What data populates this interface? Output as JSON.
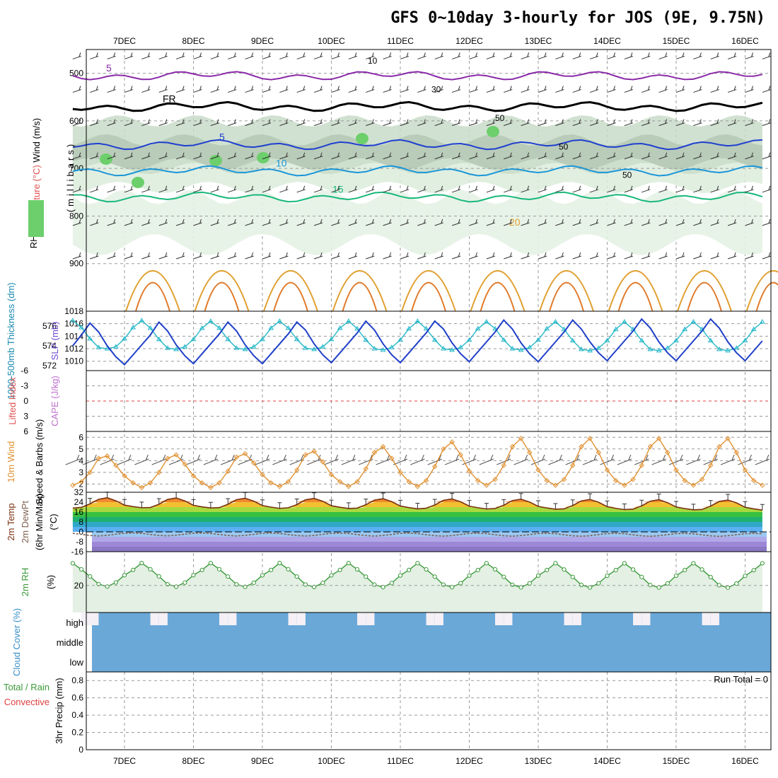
{
  "chart_data": [
    {
      "type": "meteogram",
      "title": "GFS 0~10day 3-hourly for JOS (9E, 9.75N)",
      "dates": [
        "7DEC",
        "8DEC",
        "9DEC",
        "10DEC",
        "11DEC",
        "12DEC",
        "13DEC",
        "14DEC",
        "15DEC",
        "16DEC"
      ]
    },
    {
      "type": "contour",
      "name": "upper-air",
      "ylabel_parts": [
        "Wind (m/s)",
        "Temperature (°C)",
        "RH (%)",
        "(millibars)"
      ],
      "yticks": [
        "500",
        "600",
        "700",
        "800",
        "900"
      ],
      "pressure_range": [
        1000,
        450
      ],
      "temp_contours": [
        {
          "label": "5",
          "color": "#8a2aa8"
        },
        {
          "label": "FR",
          "color": "#000000"
        },
        {
          "label": "5",
          "color": "#1f3fd0"
        },
        {
          "label": "10",
          "color": "#1a96d8"
        },
        {
          "label": "15",
          "color": "#18b87a"
        },
        {
          "label": "20",
          "color": "#e0a030"
        }
      ],
      "rh_labels": [
        "10",
        "30",
        "50",
        "50",
        "50"
      ]
    },
    {
      "type": "line",
      "name": "thickness-slp",
      "ylabel_left": "1000-500mb Thickness (dm)",
      "ylabel_right": "SLP (mb)",
      "yticks_left": [
        "576",
        "574",
        "572"
      ],
      "yticks_right": [
        "1018",
        "1016",
        "1014",
        "1012",
        "1010"
      ],
      "ylim_left": [
        571.5,
        577.5
      ],
      "ylim_right": [
        1008.5,
        1018
      ],
      "series": [
        {
          "name": "SLP",
          "color": "#25b8c8",
          "values": [
            1016.5,
            1015.4,
            1013.6,
            1012.2,
            1012.0,
            1012.3,
            1013.6,
            1015.4,
            1016.5,
            1015.3,
            1013.5,
            1012.1,
            1011.9,
            1012.3,
            1013.5,
            1015.3,
            1016.4,
            1015.3,
            1013.5,
            1012.1,
            1011.9,
            1012.3,
            1013.5,
            1015.3,
            1016.4,
            1015.3,
            1013.5,
            1012.1,
            1011.9,
            1012.3,
            1013.5,
            1015.3,
            1016.4,
            1015.2,
            1013.4,
            1012.0,
            1011.8,
            1012.2,
            1013.4,
            1015.2,
            1016.4,
            1015.2,
            1013.4,
            1012.0,
            1011.8,
            1012.2,
            1013.4,
            1015.2,
            1016.3,
            1015.2,
            1013.4,
            1012.0,
            1011.8,
            1012.2,
            1013.4,
            1015.2,
            1016.3,
            1015.1,
            1013.3,
            1011.9,
            1011.7,
            1012.1,
            1013.3,
            1015.1,
            1016.3,
            1015.1,
            1013.3,
            1011.9,
            1011.7,
            1012.1,
            1013.3,
            1015.1,
            1016.3,
            1015.1,
            1013.3,
            1011.9,
            1011.7,
            1012.1,
            1013.3,
            1015.1,
            1016.3
          ]
        },
        {
          "name": "Thickness",
          "color": "#2040c8",
          "values": [
            574.0,
            575.1,
            576.3,
            575.4,
            574.0,
            572.9,
            572.1,
            573.1,
            574.1,
            575.1,
            576.4,
            575.5,
            574.1,
            573.0,
            572.2,
            573.2,
            574.2,
            575.2,
            576.4,
            575.5,
            574.1,
            573.0,
            572.2,
            573.2,
            574.2,
            575.2,
            576.4,
            575.6,
            574.2,
            573.1,
            572.3,
            573.3,
            574.3,
            575.3,
            576.5,
            575.6,
            574.2,
            573.1,
            572.3,
            573.3,
            574.3,
            575.3,
            576.5,
            575.7,
            574.3,
            573.2,
            572.4,
            573.4,
            574.4,
            575.4,
            576.6,
            575.7,
            574.3,
            573.2,
            572.4,
            573.4,
            574.4,
            575.4,
            576.6,
            575.7,
            574.4,
            573.3,
            572.5,
            573.5,
            574.5,
            575.5,
            576.7,
            575.8,
            574.4,
            573.3,
            572.5,
            573.5,
            574.5,
            575.5,
            576.7,
            575.8,
            574.4,
            573.3,
            572.5,
            573.5,
            574.5
          ]
        }
      ]
    },
    {
      "type": "line",
      "name": "lifted-index-cape",
      "ylabel_left": "Lifted Index",
      "ylabel_right": "CAPE (J/kg)",
      "yticks": [
        "-6",
        "-3",
        "0",
        "3",
        "6"
      ],
      "ylim": [
        6,
        -6
      ],
      "series": []
    },
    {
      "type": "line",
      "name": "10m-wind",
      "ylabel": "10m Wind Speed & Barbs (m/s)",
      "yticks": [
        "6",
        "5",
        "4",
        "3",
        "2"
      ],
      "ylim": [
        1.3,
        6.5
      ],
      "series": [
        {
          "name": "Speed",
          "color": "#e09030",
          "values": [
            1.9,
            2.2,
            3.0,
            4.2,
            4.4,
            3.6,
            2.7,
            2.1,
            1.7,
            2.1,
            3.0,
            4.2,
            4.5,
            3.7,
            2.7,
            2.1,
            1.7,
            2.1,
            3.1,
            4.3,
            4.6,
            3.8,
            2.8,
            2.1,
            1.8,
            2.2,
            3.2,
            4.5,
            4.8,
            3.9,
            2.8,
            2.2,
            1.8,
            2.2,
            3.3,
            4.7,
            5.2,
            4.2,
            3.0,
            2.2,
            1.8,
            2.3,
            3.5,
            5.0,
            5.6,
            4.5,
            3.1,
            2.3,
            1.9,
            2.4,
            3.6,
            5.2,
            5.9,
            4.7,
            3.2,
            2.3,
            1.9,
            2.4,
            3.6,
            5.2,
            5.9,
            4.7,
            3.2,
            2.3,
            1.9,
            2.4,
            3.6,
            5.2,
            5.9,
            4.7,
            3.2,
            2.3,
            1.9,
            2.4,
            3.6,
            5.2,
            5.9,
            4.7,
            3.2,
            2.3,
            1.9
          ]
        }
      ]
    },
    {
      "type": "area",
      "name": "2m-temp",
      "ylabel": "2m Temp 2m DewPt (6hr Min/Max) (°C)",
      "yticks": [
        "32",
        "24",
        "16",
        "8",
        "0",
        "-8",
        "-16"
      ],
      "ylim": [
        -16,
        32
      ],
      "series": [
        {
          "name": "Temp",
          "color": "#7a3010",
          "values": [
            19.2,
            19.8,
            22.6,
            26.3,
            27.6,
            25.1,
            21.6,
            20.4,
            19.5,
            19.7,
            22.3,
            26.2,
            27.4,
            25.0,
            21.5,
            20.2,
            19.3,
            19.6,
            22.3,
            26.0,
            27.2,
            24.8,
            21.3,
            20.0,
            19.0,
            19.5,
            22.0,
            25.9,
            27.0,
            24.7,
            21.1,
            19.9,
            18.9,
            19.2,
            21.9,
            25.6,
            26.8,
            24.4,
            20.9,
            19.6,
            18.6,
            19.1,
            21.7,
            25.5,
            26.6,
            24.3,
            20.8,
            19.5,
            18.5,
            18.9,
            21.5,
            25.3,
            26.4,
            24.1,
            20.6,
            19.3,
            18.3,
            18.6,
            21.3,
            25.0,
            26.2,
            23.9,
            20.4,
            19.0,
            18.0,
            18.4,
            21.0,
            24.8,
            26.0,
            23.6,
            20.1,
            18.8,
            17.8,
            18.1,
            20.8,
            24.6,
            25.7,
            23.4,
            19.9,
            18.6,
            17.6
          ]
        },
        {
          "name": "DewPt",
          "color": "#806050",
          "values": [
            -1.2,
            -2.0,
            -2.9,
            -3.3,
            -2.8,
            -1.9,
            -1.1,
            -0.8,
            -1.2,
            -2.1,
            -2.9,
            -3.2,
            -2.7,
            -1.9,
            -1.1,
            -0.9,
            -1.3,
            -2.1,
            -2.9,
            -3.3,
            -2.8,
            -2.0,
            -1.2,
            -0.9,
            -1.3,
            -2.2,
            -3.0,
            -3.3,
            -2.9,
            -2.0,
            -1.2,
            -1.0,
            -1.3,
            -2.2,
            -3.0,
            -3.4,
            -2.9,
            -2.1,
            -1.2,
            -1.0,
            -1.4,
            -2.3,
            -3.1,
            -3.4,
            -3.0,
            -2.1,
            -1.3,
            -1.0,
            -1.4,
            -2.3,
            -3.1,
            -3.5,
            -3.0,
            -2.2,
            -1.3,
            -1.1,
            -1.5,
            -2.4,
            -3.2,
            -3.5,
            -3.1,
            -2.2,
            -1.4,
            -1.1,
            -1.5,
            -2.4,
            -3.2,
            -3.6,
            -3.1,
            -2.3,
            -1.4,
            -1.2,
            -1.6,
            -2.4,
            -3.2,
            -3.6,
            -3.1,
            -2.3,
            -1.5,
            -1.2,
            -1.6
          ]
        }
      ]
    },
    {
      "type": "area",
      "name": "2m-rh",
      "ylabel": "2m RH (%)",
      "yticks": [
        "20"
      ],
      "ylim": [
        0,
        45
      ],
      "series": [
        {
          "name": "RH",
          "color": "#3a9a3a",
          "values": [
            36.4,
            31.9,
            26.7,
            21.0,
            19.2,
            22.2,
            27.6,
            31.5,
            36.6,
            32.0,
            26.7,
            20.9,
            19.1,
            22.1,
            27.6,
            31.5,
            36.6,
            32.0,
            26.6,
            20.8,
            19.0,
            22.0,
            27.5,
            31.5,
            36.6,
            32.0,
            26.6,
            20.7,
            18.9,
            21.9,
            27.5,
            31.5,
            36.6,
            31.9,
            26.5,
            20.6,
            18.8,
            21.8,
            27.4,
            31.5,
            36.5,
            31.9,
            26.5,
            20.6,
            18.7,
            21.7,
            27.3,
            31.4,
            36.5,
            31.9,
            26.4,
            20.5,
            18.6,
            21.6,
            27.3,
            31.4,
            36.5,
            31.8,
            26.3,
            20.4,
            18.5,
            21.6,
            27.2,
            31.4,
            36.4,
            31.8,
            26.3,
            20.3,
            18.5,
            21.5,
            27.2,
            31.4,
            36.4,
            31.8,
            26.2,
            20.2,
            18.4,
            21.4,
            27.1,
            31.3,
            36.4
          ]
        }
      ]
    },
    {
      "type": "area",
      "name": "cloud-cover",
      "ylabel": "Cloud Cover (%)",
      "yticks": [
        "high",
        "middle",
        "low"
      ],
      "ylim": [
        0,
        100
      ],
      "series": [
        {
          "name": "high",
          "color": "#f4f0f6",
          "values": [
            0,
            18,
            18,
            0,
            0,
            0,
            0,
            0,
            0,
            18,
            18,
            0,
            0,
            0,
            0,
            0,
            0,
            18,
            18,
            0,
            0,
            0,
            0,
            0,
            0,
            18,
            18,
            0,
            0,
            0,
            0,
            0,
            0,
            18,
            18,
            0,
            0,
            0,
            0,
            0,
            0,
            18,
            18,
            0,
            0,
            0,
            0,
            0,
            0,
            18,
            18,
            0,
            0,
            0,
            0,
            0,
            0,
            18,
            18,
            0,
            0,
            0,
            0,
            0,
            0,
            18,
            18,
            0,
            0,
            0,
            0,
            0,
            0,
            18,
            18,
            0,
            0,
            0,
            0,
            0,
            0
          ]
        }
      ]
    },
    {
      "type": "bar",
      "name": "3hr-precip",
      "ylabel": "3hr Precip (mm)",
      "ylabel_side": [
        "Total / Rain",
        "Convective"
      ],
      "yticks": [
        "0.8",
        "0.6",
        "0.4",
        "0.2",
        "0"
      ],
      "ylim": [
        0,
        0.9
      ],
      "annotation": "Run Total = 0",
      "series": []
    }
  ]
}
